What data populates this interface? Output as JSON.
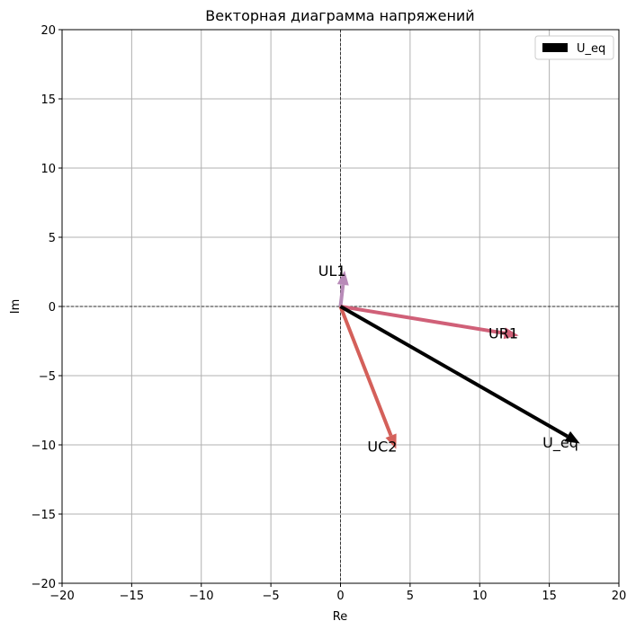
{
  "chart_data": {
    "type": "vector",
    "title": "Векторная диаграмма напряжений",
    "xlabel": "Re",
    "ylabel": "Im",
    "xlim": [
      -20,
      20
    ],
    "ylim": [
      -20,
      20
    ],
    "xticks": [
      -20,
      -15,
      -10,
      -5,
      0,
      5,
      10,
      15,
      20
    ],
    "yticks": [
      -20,
      -15,
      -10,
      -5,
      0,
      5,
      10,
      15,
      20
    ],
    "grid": true,
    "legend": {
      "placement": "top-right",
      "entries": [
        {
          "label": "U_eq",
          "color": "#000000"
        }
      ]
    },
    "vectors": [
      {
        "label": "UL1",
        "x": 0.3,
        "y": 2.6,
        "color": "#b88bb8",
        "label_x": -0.6,
        "label_y": 2.6
      },
      {
        "label": "UR1",
        "x": 12.8,
        "y": -2.1,
        "color": "#d06078",
        "label_x": 11.7,
        "label_y": -1.9
      },
      {
        "label": "UC2",
        "x": 4.0,
        "y": -10.3,
        "color": "#d4605a",
        "label_x": 3.0,
        "label_y": -10.1
      },
      {
        "label": "U_eq",
        "x": 17.2,
        "y": -9.9,
        "color": "#000000",
        "label_x": 15.8,
        "label_y": -9.8
      }
    ]
  }
}
